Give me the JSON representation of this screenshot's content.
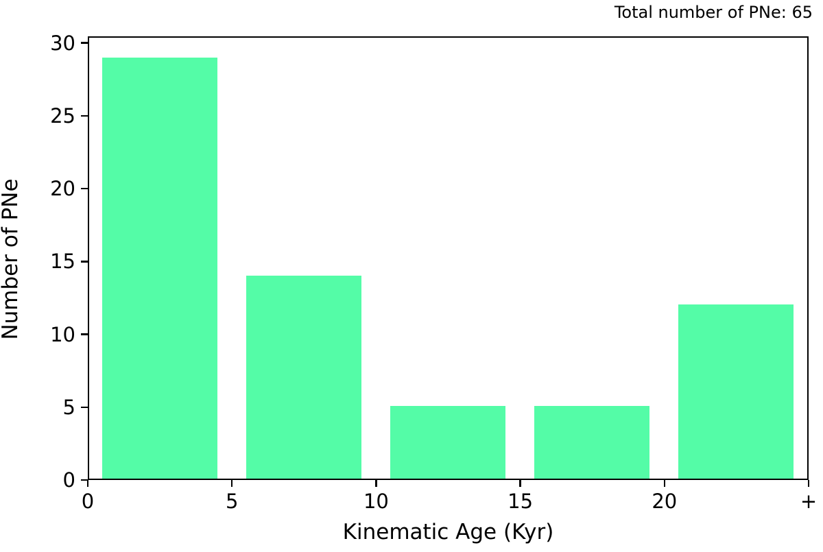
{
  "chart_data": {
    "type": "bar",
    "annotation": "Total number of PNe: 65",
    "total_pne": 65,
    "categories": [
      "0-5",
      "5-10",
      "10-15",
      "15-20",
      "20+"
    ],
    "values": [
      29,
      14,
      5,
      5,
      12
    ],
    "xlabel": "Kinematic Age (Kyr)",
    "ylabel": "Number of PNe",
    "x_tick_labels": [
      "0",
      "5",
      "10",
      "15",
      "20",
      "+"
    ],
    "y_ticks": [
      0,
      5,
      10,
      15,
      20,
      25,
      30
    ],
    "xlim": [
      -0.5,
      4.5
    ],
    "ylim": [
      0,
      30.45
    ],
    "bar_width_fraction": 0.8,
    "grid": false,
    "legend": "none",
    "bar_color": "#54fca7",
    "axis_color": "#000000",
    "background_color": "#ffffff"
  }
}
